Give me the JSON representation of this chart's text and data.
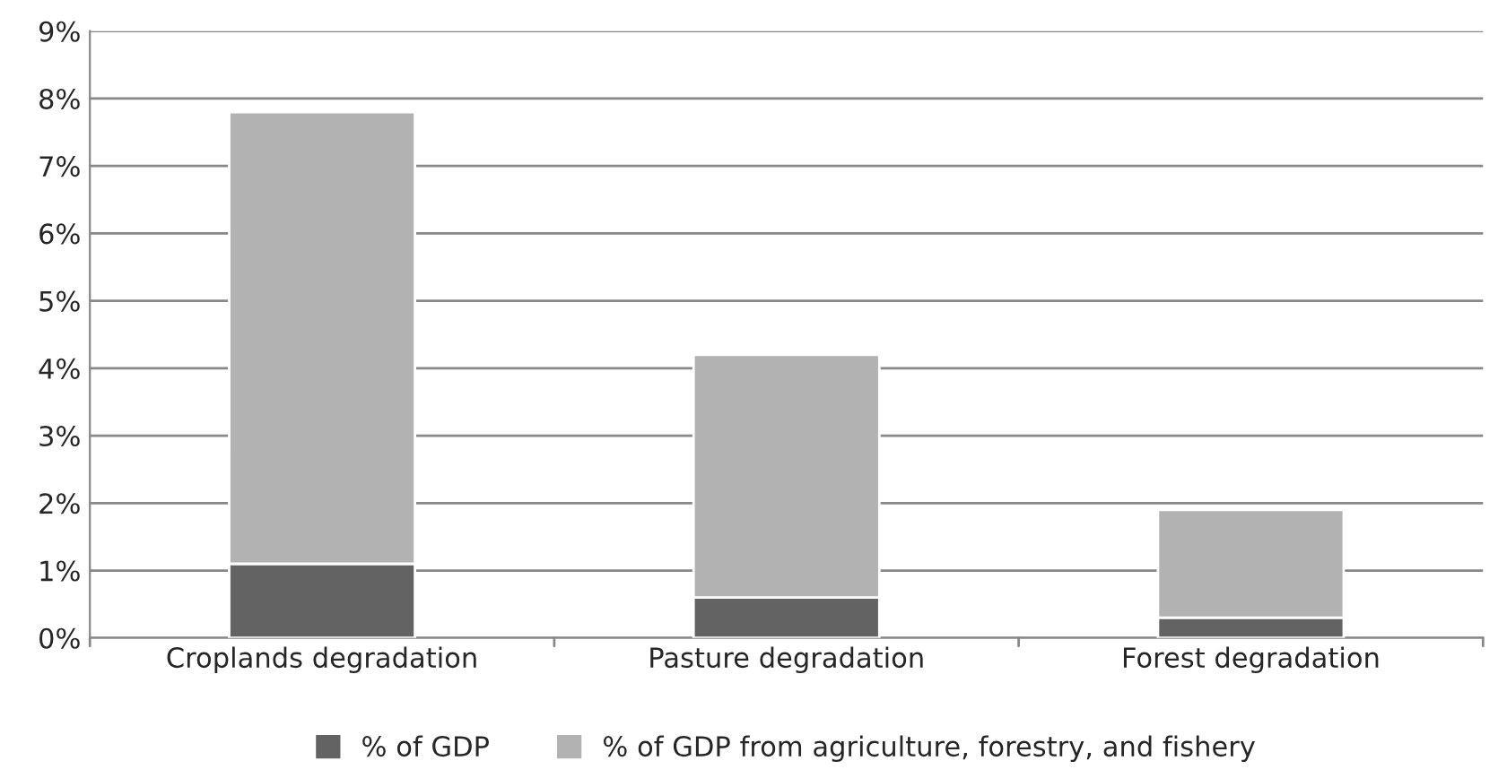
{
  "chart_data": {
    "type": "bar",
    "stacked": true,
    "categories": [
      "Croplands degradation",
      "Pasture degradation",
      "Forest degradation"
    ],
    "series": [
      {
        "name": "% of GDP",
        "color": "#636363",
        "values": [
          1.1,
          0.6,
          0.3
        ]
      },
      {
        "name": "% of GDP from agriculture, forestry, and fishery",
        "color": "#b2b2b2",
        "values": [
          6.7,
          3.6,
          1.6
        ]
      }
    ],
    "ylim": [
      0,
      9
    ],
    "yticks": [
      {
        "value": 0,
        "label": "0%"
      },
      {
        "value": 1,
        "label": "1%"
      },
      {
        "value": 2,
        "label": "2%"
      },
      {
        "value": 3,
        "label": "3%"
      },
      {
        "value": 4,
        "label": "4%"
      },
      {
        "value": 5,
        "label": "5%"
      },
      {
        "value": 6,
        "label": "6%"
      },
      {
        "value": 7,
        "label": "7%"
      },
      {
        "value": 8,
        "label": "8%"
      },
      {
        "value": 9,
        "label": "9%"
      }
    ],
    "grid": "y",
    "legend": "bottom"
  }
}
